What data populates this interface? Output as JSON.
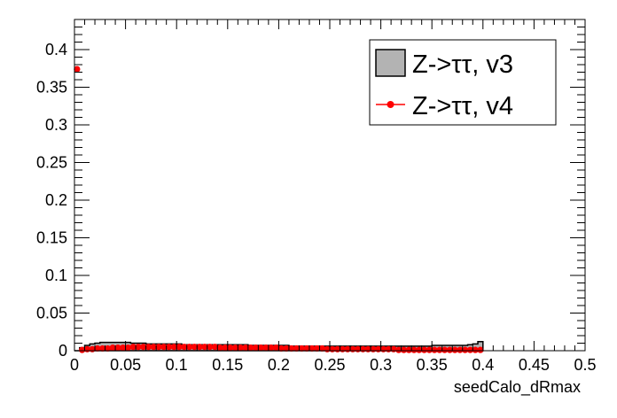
{
  "chart_data": {
    "type": "histogram",
    "xlabel": "seedCalo_dRmax",
    "xlim": [
      0,
      0.5
    ],
    "ylim": [
      0,
      0.44
    ],
    "x_ticks": [
      "0",
      "0.05",
      "0.1",
      "0.15",
      "0.2",
      "0.25",
      "0.3",
      "0.35",
      "0.4",
      "0.45",
      "0.5"
    ],
    "y_ticks": [
      "0",
      "0.05",
      "0.1",
      "0.15",
      "0.2",
      "0.25",
      "0.3",
      "0.35",
      "0.4"
    ],
    "legend_position": "top-right",
    "grid": false,
    "series": [
      {
        "name": "Z->ττ, v3",
        "style": "filled-histogram",
        "fill_color": "#b3b3b3",
        "line_color": "#000000",
        "bin_edges": [
          0,
          0.005,
          0.01,
          0.015,
          0.02,
          0.025,
          0.03,
          0.035,
          0.04,
          0.045,
          0.05,
          0.055,
          0.06,
          0.065,
          0.07,
          0.075,
          0.08,
          0.085,
          0.09,
          0.095,
          0.1,
          0.105,
          0.11,
          0.115,
          0.12,
          0.125,
          0.13,
          0.135,
          0.14,
          0.145,
          0.15,
          0.155,
          0.16,
          0.165,
          0.17,
          0.175,
          0.18,
          0.185,
          0.19,
          0.195,
          0.2,
          0.205,
          0.21,
          0.215,
          0.22,
          0.225,
          0.23,
          0.235,
          0.24,
          0.245,
          0.25,
          0.255,
          0.26,
          0.265,
          0.27,
          0.275,
          0.28,
          0.285,
          0.29,
          0.295,
          0.3,
          0.305,
          0.31,
          0.315,
          0.32,
          0.325,
          0.33,
          0.335,
          0.34,
          0.345,
          0.35,
          0.355,
          0.36,
          0.365,
          0.37,
          0.375,
          0.38,
          0.385,
          0.39,
          0.395,
          0.4
        ],
        "values": [
          0.0,
          0.004,
          0.007,
          0.009,
          0.01,
          0.011,
          0.011,
          0.011,
          0.011,
          0.011,
          0.011,
          0.01,
          0.01,
          0.01,
          0.009,
          0.009,
          0.009,
          0.009,
          0.009,
          0.009,
          0.009,
          0.008,
          0.008,
          0.008,
          0.008,
          0.008,
          0.008,
          0.008,
          0.008,
          0.008,
          0.008,
          0.008,
          0.008,
          0.008,
          0.007,
          0.007,
          0.007,
          0.007,
          0.007,
          0.007,
          0.007,
          0.007,
          0.006,
          0.006,
          0.006,
          0.006,
          0.006,
          0.006,
          0.006,
          0.006,
          0.006,
          0.006,
          0.006,
          0.006,
          0.006,
          0.006,
          0.006,
          0.006,
          0.006,
          0.006,
          0.006,
          0.006,
          0.006,
          0.006,
          0.006,
          0.006,
          0.006,
          0.006,
          0.006,
          0.006,
          0.007,
          0.007,
          0.007,
          0.007,
          0.007,
          0.007,
          0.007,
          0.008,
          0.009,
          0.012
        ]
      },
      {
        "name": "Z->ττ, v4",
        "style": "markers",
        "color": "#ff0000",
        "x": [
          0.0025,
          0.0075,
          0.0125,
          0.0175,
          0.0225,
          0.0275,
          0.0325,
          0.0375,
          0.0425,
          0.0475,
          0.0525,
          0.0575,
          0.0625,
          0.0675,
          0.0725,
          0.0775,
          0.0825,
          0.0875,
          0.0925,
          0.0975,
          0.1025,
          0.1075,
          0.1125,
          0.1175,
          0.1225,
          0.1275,
          0.1325,
          0.1375,
          0.1425,
          0.1475,
          0.1525,
          0.1575,
          0.1625,
          0.1675,
          0.1725,
          0.1775,
          0.1825,
          0.1875,
          0.1925,
          0.1975,
          0.2025,
          0.2075,
          0.2125,
          0.2175,
          0.2225,
          0.2275,
          0.2325,
          0.2375,
          0.2425,
          0.2475,
          0.2525,
          0.2575,
          0.2625,
          0.2675,
          0.2725,
          0.2775,
          0.2825,
          0.2875,
          0.2925,
          0.2975,
          0.3025,
          0.3075,
          0.3125,
          0.3175,
          0.3225,
          0.3275,
          0.3325,
          0.3375,
          0.3425,
          0.3475,
          0.3525,
          0.3575,
          0.3625,
          0.3675,
          0.3725,
          0.3775,
          0.3825,
          0.3875,
          0.3925,
          0.3975
        ],
        "y": [
          0.374,
          0.001,
          0.002,
          0.002,
          0.003,
          0.003,
          0.003,
          0.004,
          0.004,
          0.004,
          0.004,
          0.005,
          0.005,
          0.005,
          0.005,
          0.005,
          0.005,
          0.005,
          0.005,
          0.005,
          0.005,
          0.005,
          0.005,
          0.005,
          0.005,
          0.005,
          0.005,
          0.005,
          0.004,
          0.004,
          0.004,
          0.004,
          0.004,
          0.004,
          0.004,
          0.004,
          0.004,
          0.004,
          0.004,
          0.004,
          0.003,
          0.003,
          0.003,
          0.003,
          0.003,
          0.003,
          0.003,
          0.003,
          0.003,
          0.002,
          0.002,
          0.002,
          0.002,
          0.002,
          0.002,
          0.002,
          0.002,
          0.002,
          0.002,
          0.002,
          0.002,
          0.002,
          0.002,
          0.001,
          0.001,
          0.001,
          0.001,
          0.001,
          0.001,
          0.001,
          0.001,
          0.001,
          0.001,
          0.001,
          0.001,
          0.001,
          0.001,
          0.001,
          0.001,
          0.001
        ]
      }
    ]
  }
}
